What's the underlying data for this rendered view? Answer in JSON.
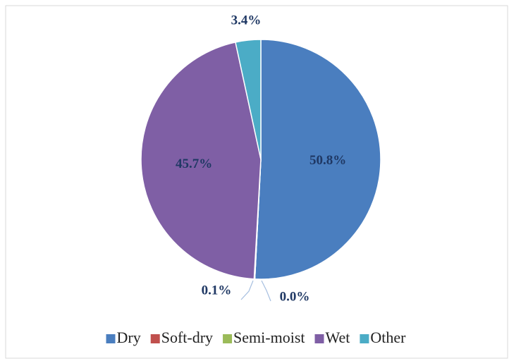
{
  "chart_data": {
    "type": "pie",
    "categories": [
      "Dry",
      "Soft-dry",
      "Semi-moist",
      "Wet",
      "Other"
    ],
    "values": [
      50.8,
      0.0,
      0.1,
      45.7,
      3.4
    ],
    "value_labels": [
      "50.8%",
      "0.0%",
      "0.1%",
      "45.7%",
      "3.4%"
    ],
    "colors": [
      "#4a7ebf",
      "#c0504d",
      "#9bbb59",
      "#7f5fa5",
      "#4bacc6"
    ],
    "legend": "bottom"
  }
}
